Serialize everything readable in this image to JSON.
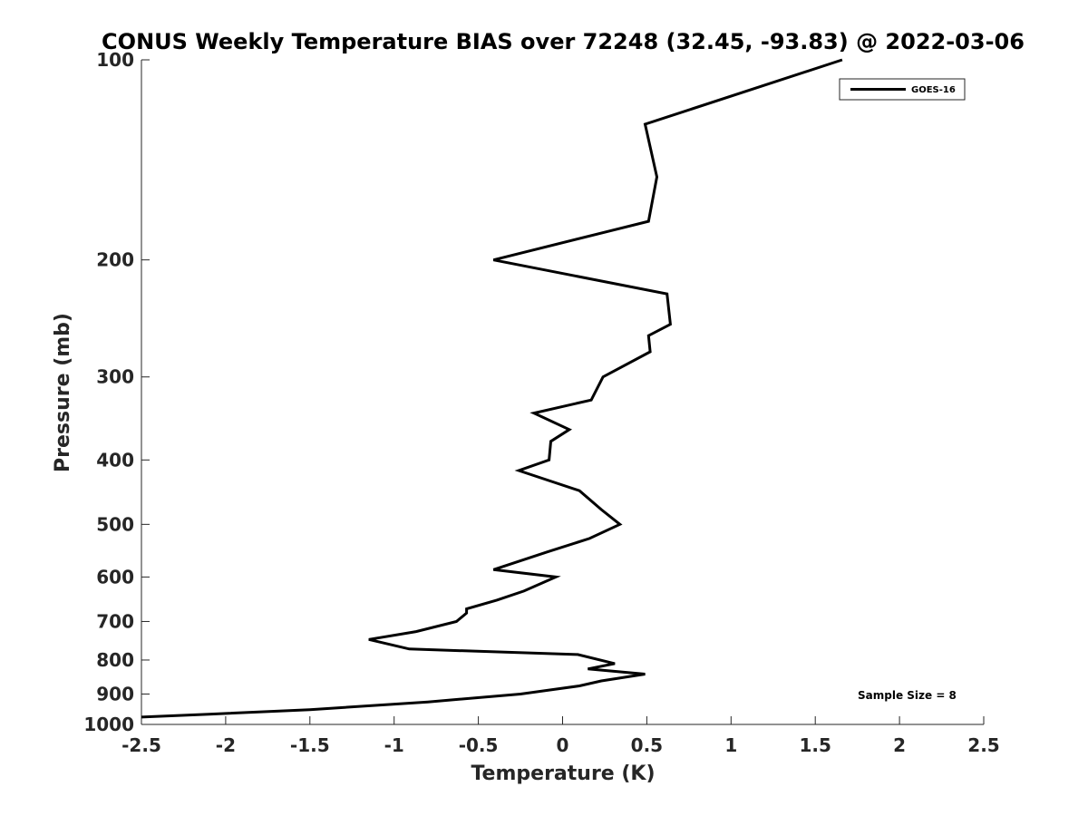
{
  "chart_data": {
    "type": "line",
    "title": "CONUS Weekly Temperature BIAS over 72248 (32.45, -93.83) @ 2022-03-06",
    "xlabel": "Temperature (K)",
    "ylabel": "Pressure (mb)",
    "xlim": [
      -2.5,
      2.5
    ],
    "ylim": [
      100,
      1000
    ],
    "y_scale": "log",
    "y_reversed": true,
    "grid": false,
    "legend_position": "top-right",
    "x_ticks": [
      "-2.5",
      "-2",
      "-1.5",
      "-1",
      "-0.5",
      "0",
      "0.5",
      "1",
      "1.5",
      "2",
      "2.5"
    ],
    "y_ticks": [
      "100",
      "200",
      "300",
      "400",
      "500",
      "600",
      "700",
      "800",
      "900",
      "1000"
    ],
    "series": [
      {
        "name": "GOES-16",
        "color": "#000000",
        "points": [
          {
            "t": 1.66,
            "p": 100
          },
          {
            "t": 0.49,
            "p": 125
          },
          {
            "t": 0.56,
            "p": 150
          },
          {
            "t": 0.51,
            "p": 175
          },
          {
            "t": -0.41,
            "p": 200
          },
          {
            "t": 0.62,
            "p": 225
          },
          {
            "t": 0.64,
            "p": 250
          },
          {
            "t": 0.51,
            "p": 260
          },
          {
            "t": 0.52,
            "p": 275
          },
          {
            "t": 0.24,
            "p": 300
          },
          {
            "t": 0.17,
            "p": 325
          },
          {
            "t": -0.17,
            "p": 340
          },
          {
            "t": 0.04,
            "p": 360
          },
          {
            "t": -0.07,
            "p": 375
          },
          {
            "t": -0.08,
            "p": 400
          },
          {
            "t": -0.26,
            "p": 415
          },
          {
            "t": 0.1,
            "p": 445
          },
          {
            "t": 0.23,
            "p": 475
          },
          {
            "t": 0.34,
            "p": 500
          },
          {
            "t": 0.16,
            "p": 525
          },
          {
            "t": -0.09,
            "p": 550
          },
          {
            "t": -0.41,
            "p": 585
          },
          {
            "t": -0.04,
            "p": 600
          },
          {
            "t": -0.23,
            "p": 630
          },
          {
            "t": -0.39,
            "p": 650
          },
          {
            "t": -0.57,
            "p": 670
          },
          {
            "t": -0.57,
            "p": 680
          },
          {
            "t": -0.63,
            "p": 700
          },
          {
            "t": -0.87,
            "p": 725
          },
          {
            "t": -1.15,
            "p": 745
          },
          {
            "t": -0.91,
            "p": 770
          },
          {
            "t": 0.09,
            "p": 785
          },
          {
            "t": 0.31,
            "p": 810
          },
          {
            "t": 0.15,
            "p": 825
          },
          {
            "t": 0.49,
            "p": 840
          },
          {
            "t": 0.23,
            "p": 860
          },
          {
            "t": 0.1,
            "p": 875
          },
          {
            "t": -0.25,
            "p": 900
          },
          {
            "t": -0.8,
            "p": 925
          },
          {
            "t": -1.5,
            "p": 950
          },
          {
            "t": -2.1,
            "p": 965
          },
          {
            "t": -2.5,
            "p": 975
          }
        ]
      }
    ],
    "annotations": [
      "Sample Size = 8"
    ]
  }
}
